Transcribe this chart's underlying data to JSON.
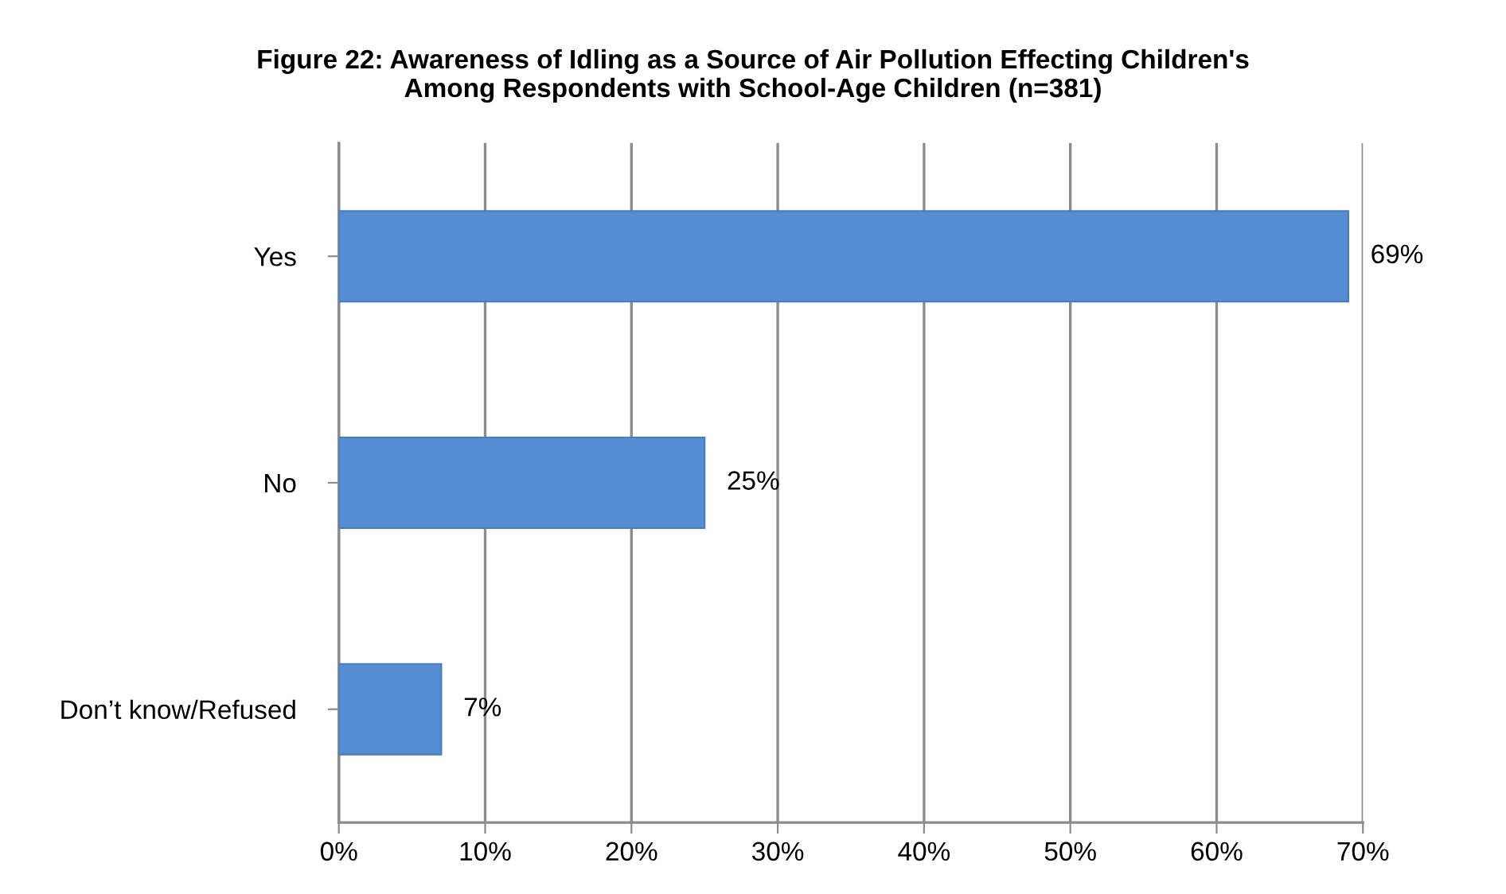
{
  "chart_data": {
    "type": "bar",
    "orientation": "horizontal",
    "title": "Figure 22: Awareness of Idling as a Source of Air Pollution Effecting Children's\nAmong Respondents with School-Age Children (n=381)",
    "categories": [
      "Yes",
      "No",
      "Don’t know/Refused"
    ],
    "values": [
      69,
      25,
      7
    ],
    "color": "#558ed5",
    "value_labels": [
      "69%",
      "25%",
      "7%"
    ],
    "xlim": [
      0,
      70
    ],
    "xticks": [
      {
        "value": 0,
        "label": "0%"
      },
      {
        "value": 10,
        "label": "10%"
      },
      {
        "value": 20,
        "label": "20%"
      },
      {
        "value": 30,
        "label": "30%"
      },
      {
        "value": 40,
        "label": "40%"
      },
      {
        "value": 50,
        "label": "50%"
      },
      {
        "value": 60,
        "label": "60%"
      },
      {
        "value": 70,
        "label": "70%"
      }
    ],
    "grid": "x",
    "legend": false
  }
}
